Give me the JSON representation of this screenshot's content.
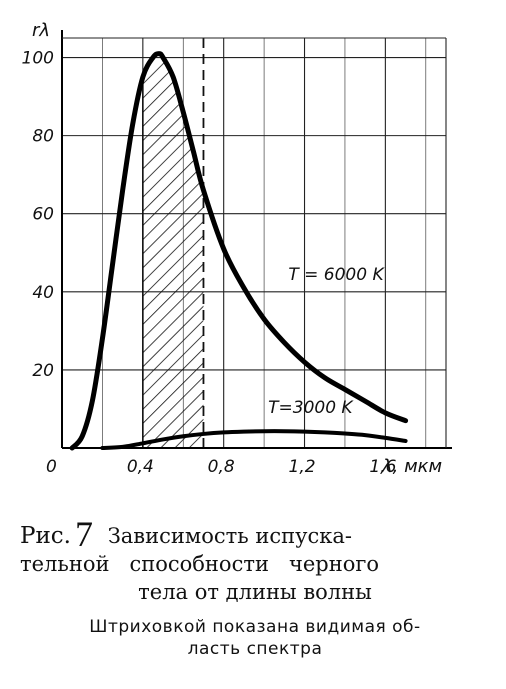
{
  "chart_data": {
    "type": "line",
    "ylabel": "rλ",
    "xlabel": "λ, мкм",
    "xlim": [
      0,
      1.9
    ],
    "ylim": [
      0,
      105
    ],
    "x_ticks": [
      "0",
      "0,4",
      "0,8",
      "1,2",
      "1,6"
    ],
    "x_tick_values": [
      0,
      0.4,
      0.8,
      1.2,
      1.6
    ],
    "y_ticks": [
      "20",
      "40",
      "60",
      "80",
      "100"
    ],
    "y_tick_values": [
      20,
      40,
      60,
      80,
      100
    ],
    "grid": true,
    "visible_region": {
      "from": 0.4,
      "to": 0.7
    },
    "series": [
      {
        "name": "T=6000 K",
        "x": [
          0.05,
          0.1,
          0.15,
          0.2,
          0.25,
          0.3,
          0.35,
          0.4,
          0.45,
          0.48,
          0.5,
          0.55,
          0.6,
          0.65,
          0.7,
          0.8,
          0.9,
          1.0,
          1.1,
          1.2,
          1.3,
          1.4,
          1.5,
          1.6,
          1.7
        ],
        "y": [
          0,
          3,
          12,
          28,
          47,
          66,
          83,
          95,
          100,
          101,
          100,
          95,
          86,
          76,
          66,
          51,
          41,
          33,
          27,
          22,
          18,
          15,
          12,
          9,
          7
        ]
      },
      {
        "name": "T=3000 K",
        "x": [
          0.2,
          0.3,
          0.4,
          0.5,
          0.6,
          0.7,
          0.8,
          0.9,
          1.0,
          1.1,
          1.2,
          1.3,
          1.4,
          1.5,
          1.6,
          1.7
        ],
        "y": [
          0,
          0.3,
          1.2,
          2.2,
          3.0,
          3.6,
          4.0,
          4.2,
          4.3,
          4.3,
          4.2,
          4.0,
          3.7,
          3.3,
          2.6,
          1.8
        ]
      }
    ],
    "annotations": [
      {
        "text": "T = 6000 K",
        "x": 1.12,
        "y": 43
      },
      {
        "text": "T=3000 K",
        "x": 1.02,
        "y": 9
      }
    ]
  },
  "caption": {
    "prefix": "Рис.",
    "number": "7",
    "title_part1": "Зависимость испуска-",
    "line2": "тельной   способности   черного",
    "line3": "тела от длины волны",
    "note_line1": "Штриховкой показана видимая об-",
    "note_line2": "ласть спектра"
  }
}
